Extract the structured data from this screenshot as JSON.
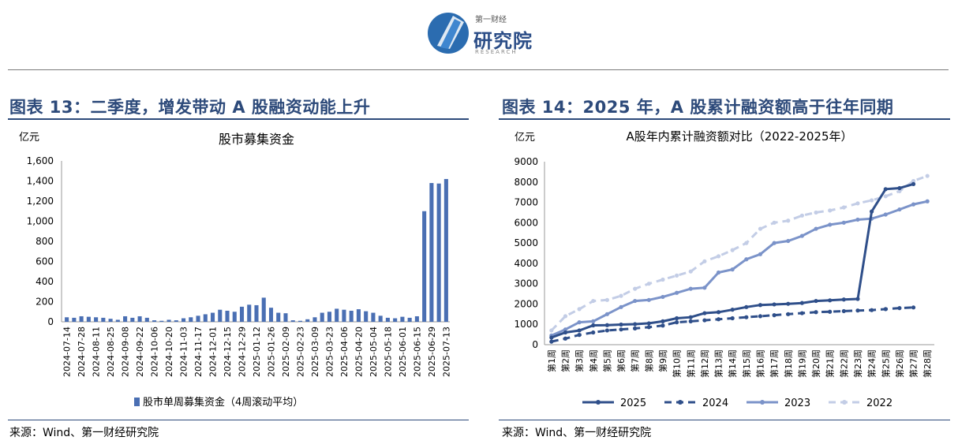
{
  "header": {
    "logo_small": "第一财经",
    "logo_main": "研究院",
    "logo_sub": "RESEARCH"
  },
  "left": {
    "heading": "图表 13：二季度，增发带动 A 股融资动能上升",
    "source": "来源：Wind、第一财经研究院"
  },
  "right": {
    "heading": "图表 14：2025 年，A 股累计融资额高于往年同期",
    "source": "来源：Wind、第一财经研究院"
  },
  "chart_data": [
    {
      "type": "bar",
      "title": "股市募集资金",
      "ylabel": "亿元",
      "ylim": [
        0,
        1600
      ],
      "yticks": [
        "0",
        "200",
        "400",
        "600",
        "800",
        "1,000",
        "1,200",
        "1,400",
        "1,600"
      ],
      "tick_labels": [
        "2024-07-14",
        "2024-07-28",
        "2024-08-11",
        "2024-08-25",
        "2024-09-08",
        "2024-09-22",
        "2024-10-06",
        "2024-10-20",
        "2024-11-03",
        "2024-11-17",
        "2024-12-01",
        "2024-12-15",
        "2024-12-29",
        "2025-01-12",
        "2025-01-26",
        "2025-02-09",
        "2025-02-23",
        "2025-03-09",
        "2025-03-23",
        "2025-04-06",
        "2025-04-20",
        "2025-05-04",
        "2025-05-18",
        "2025-06-01",
        "2025-06-15",
        "2025-06-29",
        "2025-07-13"
      ],
      "values": [
        45,
        40,
        55,
        50,
        45,
        40,
        30,
        20,
        55,
        40,
        55,
        40,
        15,
        10,
        20,
        15,
        35,
        45,
        60,
        75,
        90,
        120,
        110,
        100,
        150,
        170,
        165,
        240,
        140,
        90,
        85,
        15,
        10,
        25,
        45,
        90,
        100,
        130,
        120,
        110,
        125,
        105,
        90,
        60,
        40,
        35,
        50,
        40,
        55,
        1100,
        1380,
        1375,
        1420
      ],
      "series": [
        {
          "name": "股市单周募集资金（4周滚动平均）",
          "color": "#4a6fb3"
        }
      ]
    },
    {
      "type": "line",
      "title": "A股年内累计融资额对比（2022-2025年）",
      "ylabel": "亿元",
      "ylim": [
        0,
        9000
      ],
      "yticks": [
        "0",
        "1000",
        "2000",
        "3000",
        "4000",
        "5000",
        "6000",
        "7000",
        "8000",
        "9000"
      ],
      "categories": [
        "第1周",
        "第2周",
        "第3周",
        "第4周",
        "第5周",
        "第6周",
        "第7周",
        "第8周",
        "第9周",
        "第10周",
        "第11周",
        "第12周",
        "第13周",
        "第14周",
        "第15周",
        "第16周",
        "第17周",
        "第18周",
        "第19周",
        "第20周",
        "第21周",
        "第22周",
        "第23周",
        "第24周",
        "第25周",
        "第26周",
        "第27周",
        "第28周"
      ],
      "series": [
        {
          "name": "2025",
          "color": "#2f4f8a",
          "dash": false,
          "values": [
            350,
            600,
            700,
            950,
            960,
            990,
            1010,
            1050,
            1150,
            1300,
            1350,
            1550,
            1600,
            1720,
            1850,
            1950,
            1980,
            2010,
            2050,
            2150,
            2180,
            2220,
            2250,
            6550,
            7650,
            7700,
            7900,
            null
          ]
        },
        {
          "name": "2024",
          "color": "#2f4f8a",
          "dash": true,
          "values": [
            150,
            300,
            480,
            600,
            700,
            750,
            800,
            860,
            940,
            1100,
            1150,
            1200,
            1250,
            1300,
            1350,
            1400,
            1450,
            1500,
            1550,
            1600,
            1620,
            1650,
            1680,
            1700,
            1750,
            1800,
            1830,
            null
          ]
        },
        {
          "name": "2023",
          "color": "#7b93c9",
          "dash": false,
          "values": [
            450,
            750,
            1100,
            1150,
            1500,
            1850,
            2150,
            2200,
            2350,
            2550,
            2750,
            2800,
            3550,
            3700,
            4200,
            4450,
            5000,
            5100,
            5350,
            5700,
            5900,
            6000,
            6150,
            6200,
            6400,
            6650,
            6900,
            7050
          ]
        },
        {
          "name": "2022",
          "color": "#c3cde6",
          "dash": true,
          "values": [
            700,
            1400,
            1750,
            2150,
            2200,
            2400,
            2750,
            3000,
            3200,
            3400,
            3600,
            4100,
            4350,
            4650,
            5000,
            5700,
            6000,
            6100,
            6350,
            6500,
            6600,
            6750,
            6950,
            7100,
            7300,
            7550,
            8050,
            8300
          ]
        }
      ]
    }
  ]
}
